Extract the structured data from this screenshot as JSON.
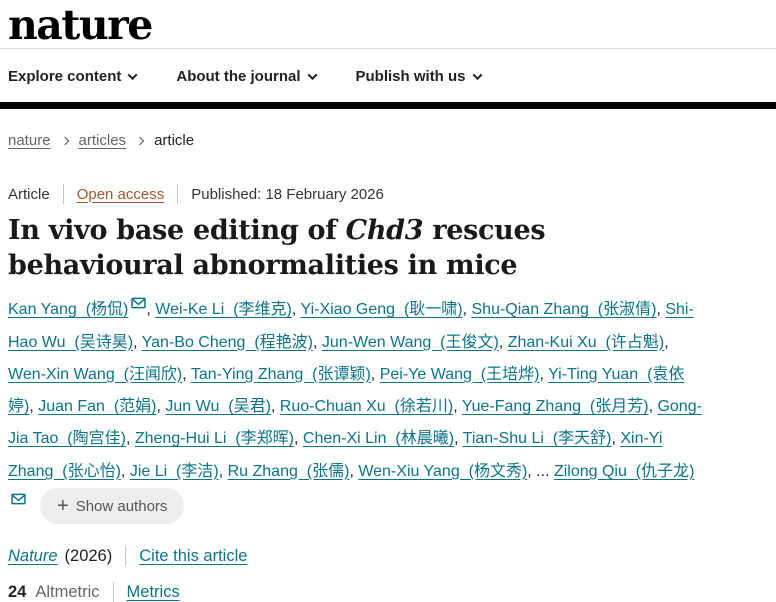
{
  "header": {
    "logo": "nature",
    "nav": [
      {
        "label": "Explore content"
      },
      {
        "label": "About the journal"
      },
      {
        "label": "Publish with us"
      }
    ]
  },
  "breadcrumb": {
    "items": [
      {
        "label": "nature"
      },
      {
        "label": "articles"
      },
      {
        "label": "article"
      }
    ]
  },
  "meta": {
    "type": "Article",
    "access": "Open access",
    "published": "Published: 18 February 2026"
  },
  "title": {
    "prefix": "In vivo base editing of ",
    "gene": "Chd3",
    "suffix": " rescues behavioural abnormalities in mice"
  },
  "authors": {
    "list": [
      {
        "name": "Kan Yang",
        "cn": "杨侃",
        "email": true
      },
      {
        "name": "Wei-Ke Li",
        "cn": "李维克"
      },
      {
        "name": "Yi-Xiao Geng",
        "cn": "耿一啸"
      },
      {
        "name": "Shu-Qian Zhang",
        "cn": "张淑倩"
      },
      {
        "name": "Shi-Hao Wu",
        "cn": "吴诗昊"
      },
      {
        "name": "Yan-Bo Cheng",
        "cn": "程艳波"
      },
      {
        "name": "Jun-Wen Wang",
        "cn": "王俊文"
      },
      {
        "name": "Zhan-Kui Xu",
        "cn": "许占魁"
      },
      {
        "name": "Wen-Xin Wang",
        "cn": "汪闻欣"
      },
      {
        "name": "Tan-Ying Zhang",
        "cn": "张谭颖"
      },
      {
        "name": "Pei-Ye Wang",
        "cn": "王培烨"
      },
      {
        "name": "Yi-Ting Yuan",
        "cn": "袁依婷"
      },
      {
        "name": "Juan Fan",
        "cn": "范娟"
      },
      {
        "name": "Jun Wu",
        "cn": "吴君"
      },
      {
        "name": "Ruo-Chuan Xu",
        "cn": "徐若川"
      },
      {
        "name": "Yue-Fang Zhang",
        "cn": "张月芳"
      },
      {
        "name": "Gong-Jia Tao",
        "cn": "陶宫佳"
      },
      {
        "name": "Zheng-Hui Li",
        "cn": "李郑晖"
      },
      {
        "name": "Chen-Xi Lin",
        "cn": "林晨曦"
      },
      {
        "name": "Tian-Shu Li",
        "cn": "李天舒"
      },
      {
        "name": "Xin-Yi Zhang",
        "cn": "张心怡"
      },
      {
        "name": "Jie Li",
        "cn": "李洁"
      },
      {
        "name": "Ru Zhang",
        "cn": "张儒"
      },
      {
        "name": "Wen-Xiu Yang",
        "cn": "杨文秀"
      },
      {
        "name": "Zilong Qiu",
        "cn": "仇子龙",
        "email": true
      }
    ],
    "ellipsis_before_last": "...",
    "separator": ", ",
    "show_authors_label": "Show authors",
    "plus_glyph": "+"
  },
  "citation": {
    "journal": "Nature",
    "year": "(2026)",
    "cite_link": "Cite this article"
  },
  "metrics": {
    "altmetric_score": "24",
    "altmetric_label": "Altmetric",
    "metrics_link": "Metrics"
  },
  "colors": {
    "link_teal": "#0d7389",
    "open_access_orange": "#a4572e",
    "header_bar_black": "#000000"
  }
}
